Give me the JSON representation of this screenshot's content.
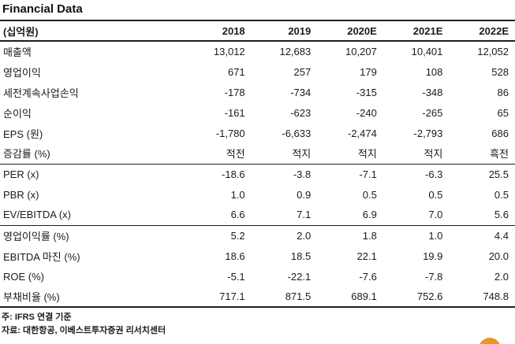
{
  "title": "Financial Data",
  "table": {
    "unit_label": "(십억원)",
    "years": [
      "2018",
      "2019",
      "2020E",
      "2021E",
      "2022E"
    ],
    "sections": [
      {
        "rows": [
          {
            "label": "매출액",
            "values": [
              "13,012",
              "12,683",
              "10,207",
              "10,401",
              "12,052"
            ]
          },
          {
            "label": "영업이익",
            "values": [
              "671",
              "257",
              "179",
              "108",
              "528"
            ]
          },
          {
            "label": "세전계속사업손익",
            "values": [
              "-178",
              "-734",
              "-315",
              "-348",
              "86"
            ]
          },
          {
            "label": "순이익",
            "values": [
              "-161",
              "-623",
              "-240",
              "-265",
              "65"
            ]
          },
          {
            "label": "EPS (원)",
            "values": [
              "-1,780",
              "-6,633",
              "-2,474",
              "-2,793",
              "686"
            ]
          },
          {
            "label": "증감률 (%)",
            "values": [
              "적전",
              "적지",
              "적지",
              "적지",
              "흑전"
            ]
          }
        ]
      },
      {
        "rows": [
          {
            "label": "PER (x)",
            "values": [
              "-18.6",
              "-3.8",
              "-7.1",
              "-6.3",
              "25.5"
            ]
          },
          {
            "label": "PBR (x)",
            "values": [
              "1.0",
              "0.9",
              "0.5",
              "0.5",
              "0.5"
            ]
          },
          {
            "label": "EV/EBITDA (x)",
            "values": [
              "6.6",
              "7.1",
              "6.9",
              "7.0",
              "5.6"
            ]
          }
        ]
      },
      {
        "rows": [
          {
            "label": "영업이익률 (%)",
            "values": [
              "5.2",
              "2.0",
              "1.8",
              "1.0",
              "4.4"
            ]
          },
          {
            "label": "EBITDA 마진 (%)",
            "values": [
              "18.6",
              "18.5",
              "22.1",
              "19.9",
              "20.0"
            ]
          },
          {
            "label": "ROE (%)",
            "values": [
              "-5.1",
              "-22.1",
              "-7.6",
              "-7.8",
              "2.0"
            ]
          },
          {
            "label": "부채비율 (%)",
            "values": [
              "717.1",
              "871.5",
              "689.1",
              "752.6",
              "748.8"
            ]
          }
        ]
      }
    ]
  },
  "footnotes": {
    "note": "주: IFRS 연결 기준",
    "source": "자료: 대한항공, 이베스트투자증권 리서치센터"
  },
  "colors": {
    "text": "#1b1b1b",
    "rule": "#1e1e1e",
    "accent_orange": "#F0931F"
  }
}
